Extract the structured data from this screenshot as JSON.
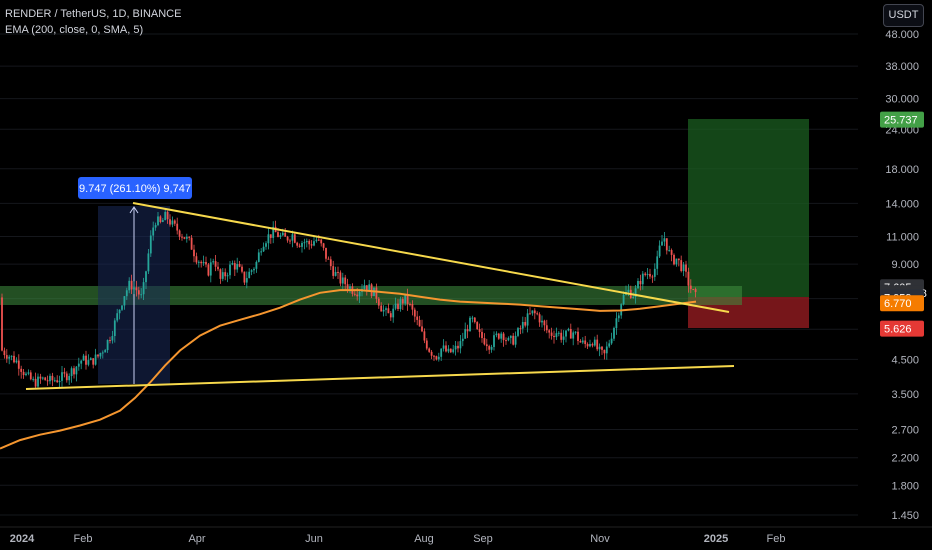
{
  "header": {
    "symbol_line": "RENDER / TetherUS, 1D, BINANCE",
    "indicator_line": "EMA (200, close, 0, SMA, 5)"
  },
  "currency_button": "USDT",
  "measure_label": "9.747 (261.10%) 9,747",
  "chart_data": {
    "type": "candlestick",
    "title": "RENDER / TetherUS, 1D, BINANCE",
    "y_scale": "log",
    "ylim": [
      1.3,
      60
    ],
    "y_ticks": [
      "48.000",
      "38.000",
      "30.000",
      "24.000",
      "18.000",
      "14.000",
      "11.000",
      "9.000",
      "7.000",
      "5.600",
      "4.500",
      "3.500",
      "2.700",
      "2.200",
      "1.800",
      "1.450"
    ],
    "x_ticks": [
      "2024",
      "Feb",
      "Apr",
      "Jun",
      "Aug",
      "Sep",
      "Nov",
      "2025",
      "Feb"
    ],
    "price_labels": [
      {
        "text": "25.737",
        "value": 25.737,
        "color": "#43a047"
      },
      {
        "text": "7.605",
        "value": 7.605,
        "color": "#2f3136"
      },
      {
        "text": "12:09:58",
        "value": 7.28,
        "color": "#2f3136"
      },
      {
        "text": "7.059",
        "value": 7.059,
        "color": "#2a2e39"
      },
      {
        "text": "6.770",
        "value": 6.77,
        "color": "#f57c00"
      },
      {
        "text": "5.626",
        "value": 5.626,
        "color": "#e53935"
      }
    ],
    "ema_200": [
      [
        0,
        2.35
      ],
      [
        20,
        2.5
      ],
      [
        40,
        2.6
      ],
      [
        60,
        2.68
      ],
      [
        80,
        2.78
      ],
      [
        100,
        2.9
      ],
      [
        120,
        3.1
      ],
      [
        135,
        3.4
      ],
      [
        150,
        3.8
      ],
      [
        165,
        4.3
      ],
      [
        180,
        4.8
      ],
      [
        200,
        5.35
      ],
      [
        220,
        5.75
      ],
      [
        240,
        6.0
      ],
      [
        260,
        6.25
      ],
      [
        280,
        6.55
      ],
      [
        300,
        6.95
      ],
      [
        320,
        7.3
      ],
      [
        340,
        7.45
      ],
      [
        360,
        7.45
      ],
      [
        380,
        7.35
      ],
      [
        400,
        7.25
      ],
      [
        420,
        7.1
      ],
      [
        440,
        6.95
      ],
      [
        460,
        6.85
      ],
      [
        480,
        6.8
      ],
      [
        500,
        6.75
      ],
      [
        520,
        6.7
      ],
      [
        540,
        6.62
      ],
      [
        560,
        6.55
      ],
      [
        580,
        6.48
      ],
      [
        600,
        6.4
      ],
      [
        620,
        6.42
      ],
      [
        640,
        6.5
      ],
      [
        660,
        6.62
      ],
      [
        680,
        6.75
      ],
      [
        696,
        6.85
      ]
    ],
    "candles_close": [
      [
        2,
        4.8
      ],
      [
        10,
        4.6
      ],
      [
        18,
        4.4
      ],
      [
        26,
        4.0
      ],
      [
        34,
        3.8
      ],
      [
        42,
        3.9
      ],
      [
        50,
        3.85
      ],
      [
        58,
        3.9
      ],
      [
        66,
        4.0
      ],
      [
        74,
        4.2
      ],
      [
        82,
        4.5
      ],
      [
        90,
        4.4
      ],
      [
        98,
        4.6
      ],
      [
        106,
        5.0
      ],
      [
        112,
        5.5
      ],
      [
        118,
        6.3
      ],
      [
        124,
        7.2
      ],
      [
        130,
        7.8
      ],
      [
        136,
        7.5
      ],
      [
        142,
        7.0
      ],
      [
        148,
        9.5
      ],
      [
        152,
        11.5
      ],
      [
        156,
        12.5
      ],
      [
        160,
        12.0
      ],
      [
        166,
        12.8
      ],
      [
        172,
        12.0
      ],
      [
        178,
        11.5
      ],
      [
        184,
        11.0
      ],
      [
        190,
        10.5
      ],
      [
        196,
        9.5
      ],
      [
        202,
        9.0
      ],
      [
        208,
        8.5
      ],
      [
        214,
        9.5
      ],
      [
        220,
        8.0
      ],
      [
        226,
        8.4
      ],
      [
        232,
        9.0
      ],
      [
        238,
        8.8
      ],
      [
        244,
        8.0
      ],
      [
        250,
        8.5
      ],
      [
        256,
        9.0
      ],
      [
        262,
        10.5
      ],
      [
        268,
        11.0
      ],
      [
        274,
        11.4
      ],
      [
        280,
        11.0
      ],
      [
        286,
        10.8
      ],
      [
        292,
        11.2
      ],
      [
        298,
        10.5
      ],
      [
        304,
        10.6
      ],
      [
        310,
        10.4
      ],
      [
        316,
        10.8
      ],
      [
        322,
        10.2
      ],
      [
        328,
        9.2
      ],
      [
        334,
        8.5
      ],
      [
        340,
        8.0
      ],
      [
        346,
        7.8
      ],
      [
        352,
        7.5
      ],
      [
        358,
        7.4
      ],
      [
        364,
        7.8
      ],
      [
        370,
        7.5
      ],
      [
        376,
        7.2
      ],
      [
        382,
        6.5
      ],
      [
        388,
        6.2
      ],
      [
        394,
        6.4
      ],
      [
        400,
        6.8
      ],
      [
        406,
        7.0
      ],
      [
        412,
        6.4
      ],
      [
        418,
        5.8
      ],
      [
        424,
        5.2
      ],
      [
        430,
        4.8
      ],
      [
        436,
        4.6
      ],
      [
        442,
        4.9
      ],
      [
        448,
        4.7
      ],
      [
        454,
        4.8
      ],
      [
        460,
        5.0
      ],
      [
        466,
        5.6
      ],
      [
        472,
        6.0
      ],
      [
        478,
        5.4
      ],
      [
        484,
        5.2
      ],
      [
        490,
        5.0
      ],
      [
        496,
        5.3
      ],
      [
        502,
        5.5
      ],
      [
        508,
        5.1
      ],
      [
        514,
        5.2
      ],
      [
        520,
        5.6
      ],
      [
        526,
        6.0
      ],
      [
        532,
        6.3
      ],
      [
        538,
        6.2
      ],
      [
        544,
        5.7
      ],
      [
        550,
        5.4
      ],
      [
        556,
        5.5
      ],
      [
        562,
        5.3
      ],
      [
        568,
        5.4
      ],
      [
        574,
        5.5
      ],
      [
        580,
        5.1
      ],
      [
        586,
        5.0
      ],
      [
        592,
        5.2
      ],
      [
        598,
        4.8
      ],
      [
        604,
        4.6
      ],
      [
        610,
        5.2
      ],
      [
        616,
        6.0
      ],
      [
        622,
        7.0
      ],
      [
        628,
        7.4
      ],
      [
        634,
        7.2
      ],
      [
        640,
        8.0
      ],
      [
        646,
        8.4
      ],
      [
        652,
        8.5
      ],
      [
        656,
        8.8
      ],
      [
        660,
        10.2
      ],
      [
        664,
        11.0
      ],
      [
        668,
        10.0
      ],
      [
        672,
        9.2
      ],
      [
        676,
        9.4
      ],
      [
        680,
        9.0
      ],
      [
        684,
        8.6
      ],
      [
        688,
        7.9
      ],
      [
        692,
        7.4
      ],
      [
        696,
        7.06
      ]
    ]
  }
}
